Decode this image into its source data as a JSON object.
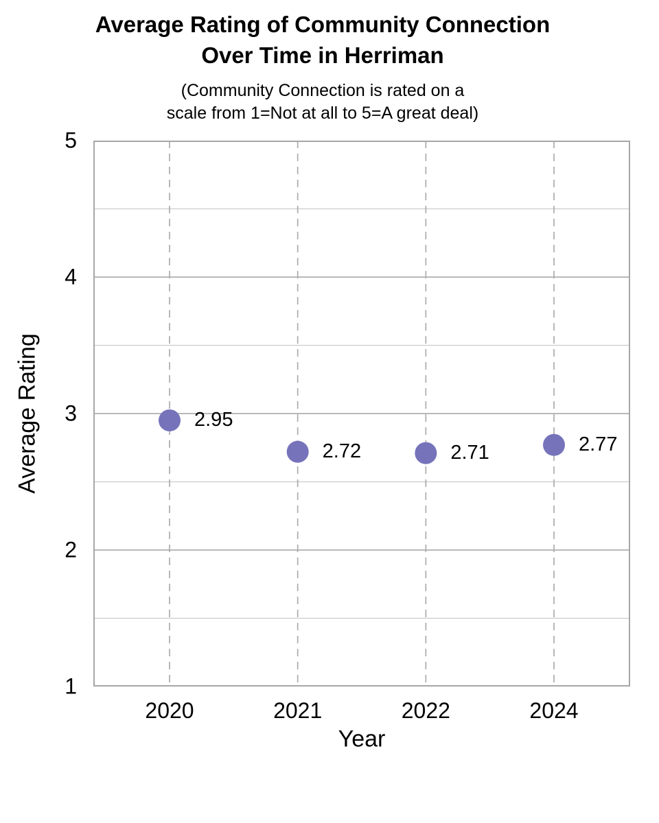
{
  "chart_data": {
    "type": "scatter",
    "title_lines": [
      "Average Rating of Community Connection",
      "Over Time in Herriman"
    ],
    "subtitle_lines": [
      "(Community Connection is rated on a",
      "scale from 1=Not at all to 5=A great deal)"
    ],
    "xlabel": "Year",
    "ylabel": "Average Rating",
    "categories": [
      "2020",
      "2021",
      "2022",
      "2024"
    ],
    "values": [
      2.95,
      2.72,
      2.71,
      2.77
    ],
    "point_labels": [
      "2.95",
      "2.72",
      "2.71",
      "2.77"
    ],
    "ylim": [
      1,
      5
    ],
    "yticks": [
      "5",
      "4",
      "3",
      "2",
      "1"
    ],
    "ytick_values": [
      5,
      4,
      3,
      2,
      1
    ],
    "grid_step": 0.5,
    "grid": "horizontal solid lines every 0.5; vertical dashed lines at each year",
    "legend": "none",
    "colors": {
      "marker": "#7673BB",
      "grid_major": "#b9b9b9",
      "grid_minor": "#cccccc",
      "dashed_line": "#ababab",
      "plot_border": "#a6a6a6",
      "text": "#000000"
    }
  }
}
